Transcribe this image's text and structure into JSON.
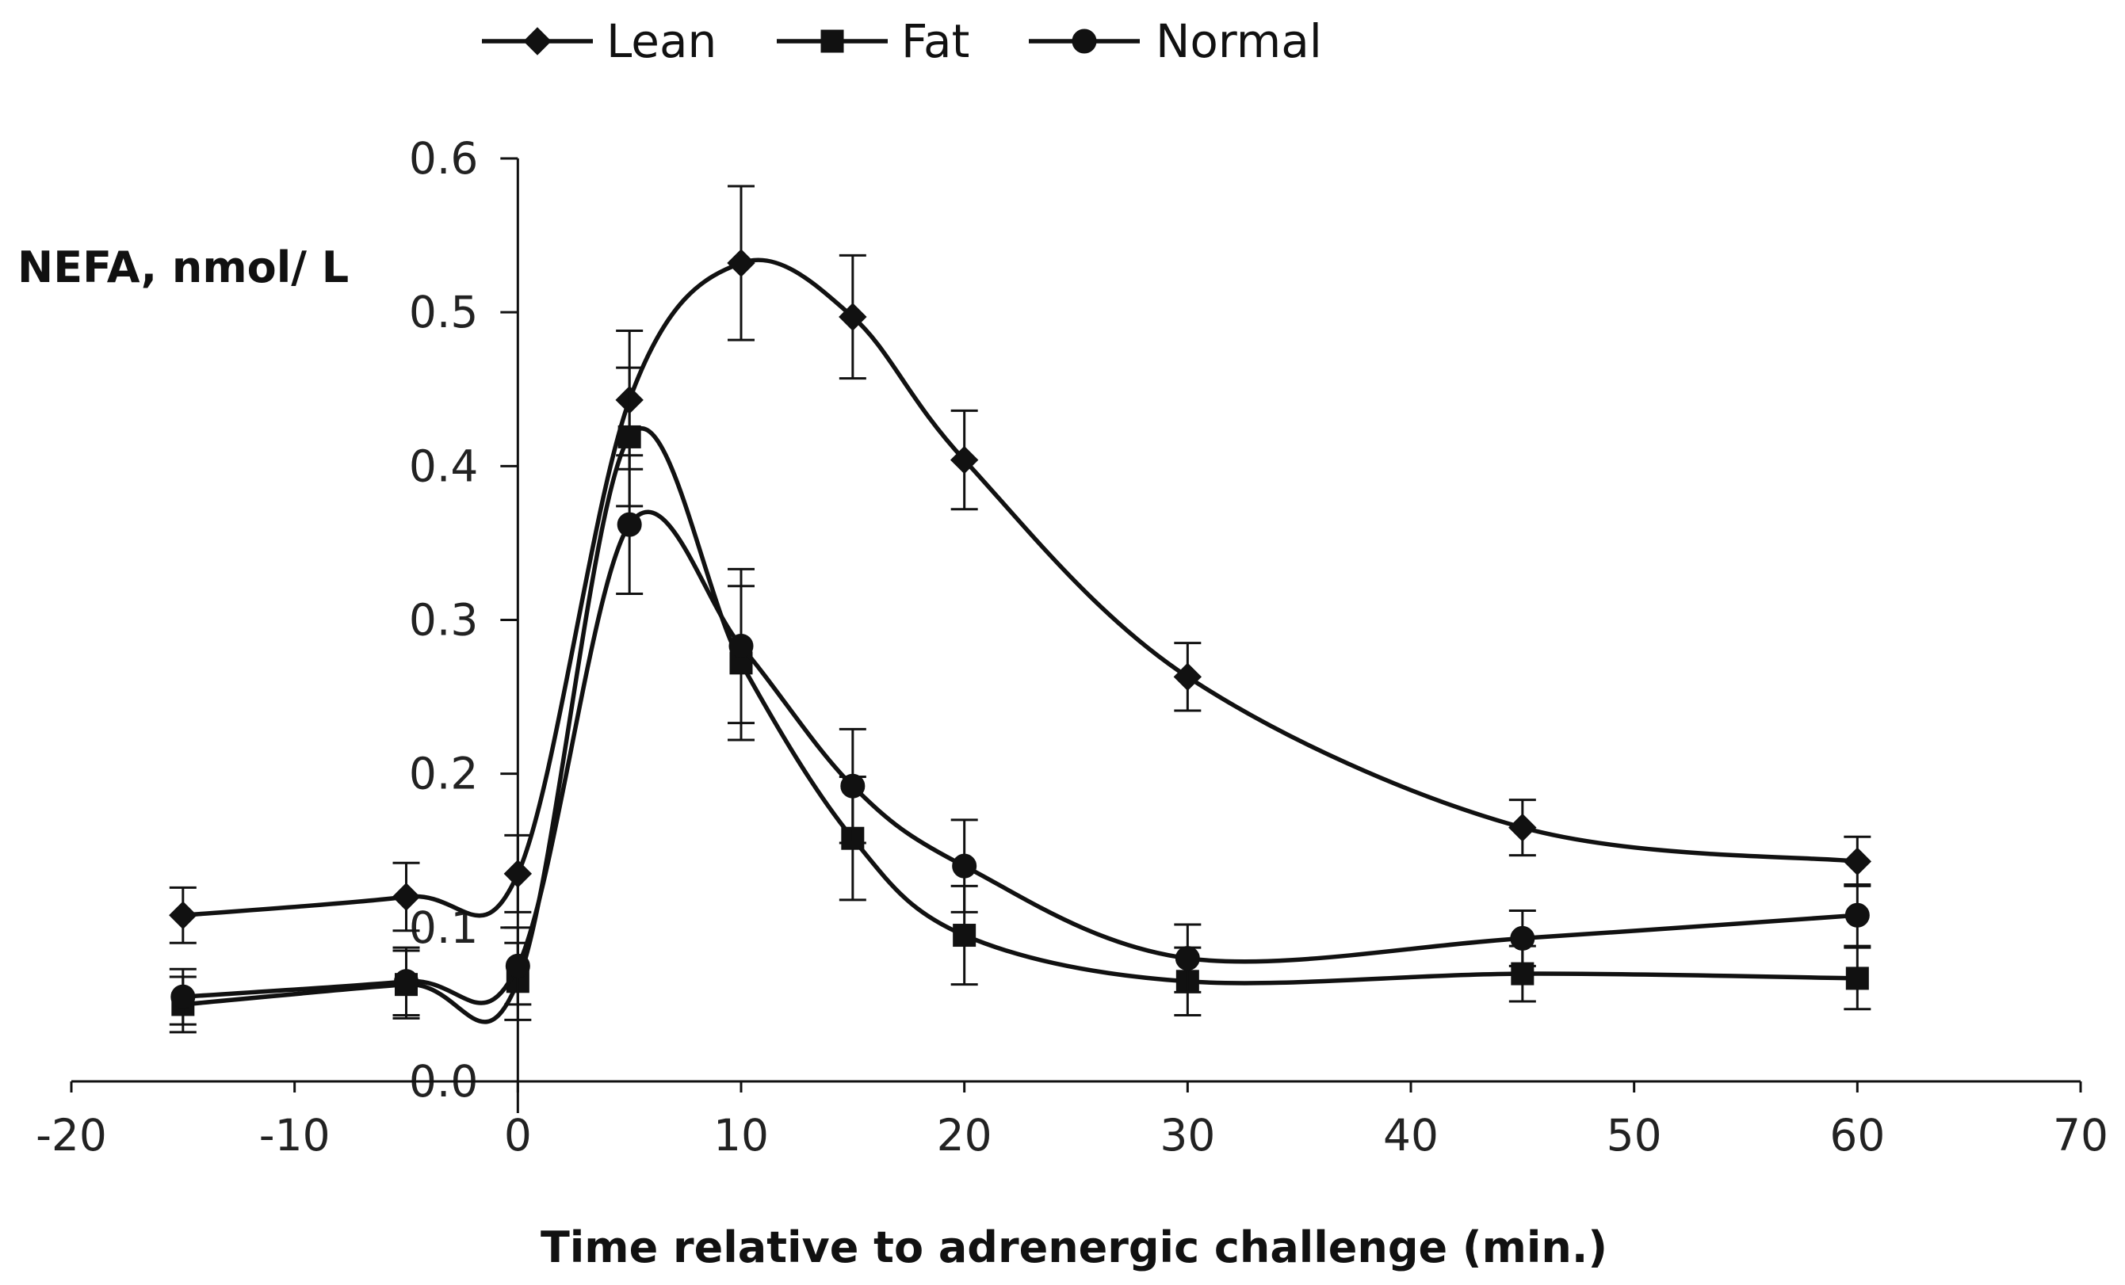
{
  "chart_data": {
    "type": "line",
    "title": "",
    "xlabel": "Time relative to adrenergic challenge (min.)",
    "ylabel": "NEFA, nmol/ L",
    "xlim": [
      -20,
      70
    ],
    "ylim": [
      0,
      0.6
    ],
    "x_ticks": [
      -20,
      -10,
      0,
      10,
      20,
      30,
      40,
      50,
      60,
      70
    ],
    "x_tick_labels": [
      "-20",
      "-10",
      "0",
      "10",
      "20",
      "30",
      "40",
      "50",
      "60",
      "70"
    ],
    "y_ticks": [
      0,
      0.1,
      0.2,
      0.3,
      0.4,
      0.5,
      0.6
    ],
    "y_tick_labels": [
      "0.0",
      "0.1",
      "0.2",
      "0.3",
      "0.4",
      "0.5",
      "0.6"
    ],
    "grid": false,
    "legend_position": "top-left",
    "x": [
      -15,
      -5,
      0,
      5,
      10,
      15,
      20,
      30,
      45,
      60
    ],
    "series": [
      {
        "name": "Lean",
        "marker": "diamond",
        "values": [
          0.108,
          0.12,
          0.135,
          0.443,
          0.532,
          0.497,
          0.404,
          0.263,
          0.165,
          0.143
        ],
        "errors": [
          0.018,
          0.022,
          0.025,
          0.045,
          0.05,
          0.04,
          0.032,
          0.022,
          0.018,
          0.016
        ]
      },
      {
        "name": "Fat",
        "marker": "square",
        "values": [
          0.05,
          0.063,
          0.065,
          0.419,
          0.272,
          0.158,
          0.095,
          0.065,
          0.07,
          0.067
        ],
        "errors": [
          0.018,
          0.022,
          0.025,
          0.045,
          0.05,
          0.04,
          0.032,
          0.022,
          0.018,
          0.02
        ]
      },
      {
        "name": "Normal",
        "marker": "circle",
        "values": [
          0.055,
          0.065,
          0.075,
          0.362,
          0.283,
          0.192,
          0.14,
          0.08,
          0.093,
          0.108
        ],
        "errors": [
          0.018,
          0.022,
          0.025,
          0.045,
          0.05,
          0.037,
          0.03,
          0.022,
          0.018,
          0.02
        ]
      }
    ]
  }
}
